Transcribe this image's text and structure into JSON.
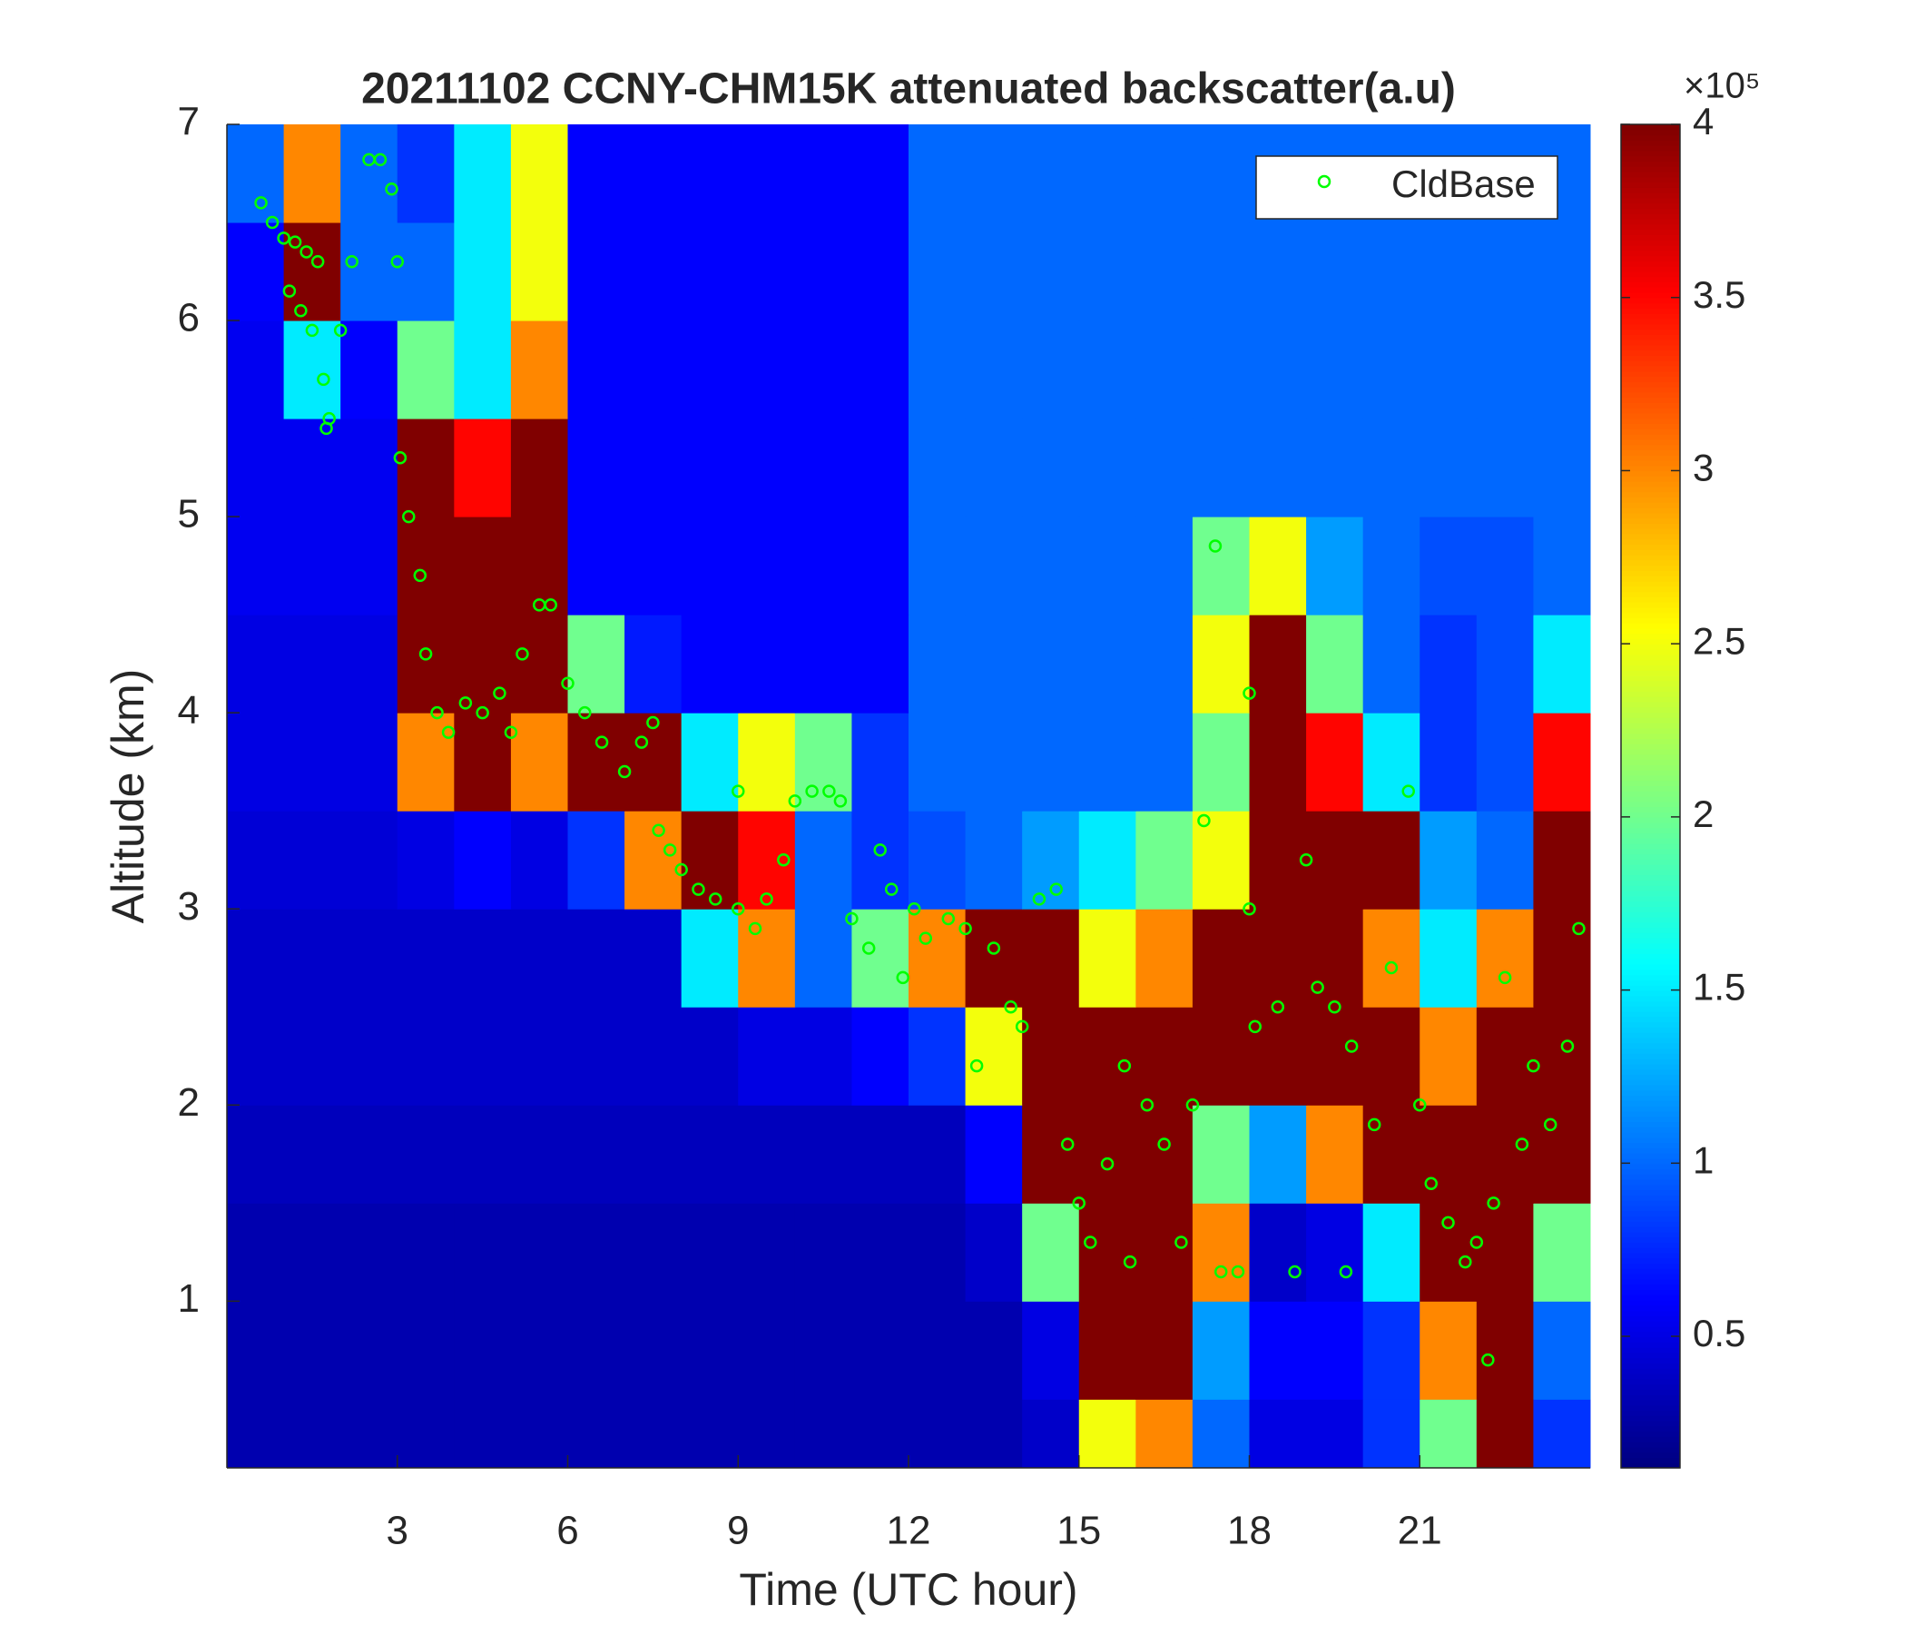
{
  "chart_data": {
    "type": "heatmap",
    "title": "20211102 CCNY-CHM15K attenuated backscatter(a.u)",
    "xlabel": "Time (UTC hour)",
    "ylabel": "Altitude (km)",
    "xlim": [
      0,
      24
    ],
    "ylim": [
      0.15,
      7
    ],
    "xticks": [
      3,
      6,
      9,
      12,
      15,
      18,
      21
    ],
    "yticks": [
      1,
      2,
      3,
      4,
      5,
      6,
      7
    ],
    "colormap": "jet",
    "clim": [
      0.12,
      4
    ],
    "colorbar_ticks": [
      0.5,
      1,
      1.5,
      2,
      2.5,
      3,
      3.5,
      4
    ],
    "colorbar_exponent_label": "×10⁵",
    "legend": "upper right",
    "x_edges": [
      0,
      1,
      2,
      3,
      4,
      5,
      6,
      7,
      8,
      9,
      10,
      11,
      12,
      13,
      14,
      15,
      16,
      17,
      18,
      19,
      20,
      21,
      22,
      23,
      24
    ],
    "y_edges": [
      0.15,
      0.5,
      1,
      1.5,
      2,
      2.5,
      3,
      3.5,
      4,
      4.5,
      5,
      5.5,
      6,
      6.5,
      7
    ],
    "z": [
      [
        0.3,
        0.3,
        0.3,
        0.3,
        0.3,
        0.3,
        0.3,
        0.3,
        0.3,
        0.3,
        0.3,
        0.3,
        0.3,
        0.3,
        0.4,
        2.5,
        3,
        1,
        0.5,
        0.5,
        0.8,
        2,
        4,
        0.8
      ],
      [
        0.3,
        0.3,
        0.3,
        0.3,
        0.3,
        0.3,
        0.3,
        0.3,
        0.3,
        0.3,
        0.3,
        0.3,
        0.3,
        0.3,
        0.5,
        4,
        4,
        1.2,
        0.6,
        0.6,
        0.8,
        3,
        4,
        1
      ],
      [
        0.3,
        0.3,
        0.3,
        0.3,
        0.3,
        0.3,
        0.3,
        0.3,
        0.3,
        0.3,
        0.3,
        0.3,
        0.3,
        0.4,
        2,
        4,
        4,
        3,
        0.4,
        0.5,
        1.5,
        4,
        4,
        2
      ],
      [
        0.35,
        0.35,
        0.35,
        0.35,
        0.35,
        0.35,
        0.35,
        0.35,
        0.35,
        0.35,
        0.35,
        0.35,
        0.35,
        0.6,
        4,
        4,
        4,
        2,
        1.2,
        3,
        4,
        4,
        4,
        4
      ],
      [
        0.4,
        0.4,
        0.4,
        0.4,
        0.4,
        0.4,
        0.4,
        0.4,
        0.4,
        0.5,
        0.5,
        0.6,
        0.8,
        2.5,
        4,
        4,
        4,
        4,
        4,
        4,
        4,
        3,
        4,
        4
      ],
      [
        0.4,
        0.4,
        0.4,
        0.4,
        0.4,
        0.4,
        0.4,
        0.4,
        1.5,
        3,
        1,
        2,
        3,
        4,
        4,
        2.5,
        3,
        4,
        4,
        4,
        3,
        1.5,
        3,
        4
      ],
      [
        0.45,
        0.45,
        0.45,
        0.5,
        0.6,
        0.5,
        0.8,
        3,
        4,
        3.5,
        1,
        0.8,
        0.9,
        1,
        1.2,
        1.5,
        2,
        2.5,
        4,
        4,
        4,
        1.2,
        1,
        4
      ],
      [
        0.5,
        0.5,
        0.5,
        3,
        4,
        3,
        4,
        4,
        1.5,
        2.5,
        2,
        0.8,
        1,
        1,
        1,
        1,
        1,
        2,
        4,
        3.5,
        1.5,
        0.8,
        0.9,
        3.5
      ],
      [
        0.5,
        0.5,
        0.5,
        4,
        4,
        4,
        2,
        0.7,
        0.6,
        0.6,
        0.6,
        0.6,
        1,
        1,
        1,
        1,
        1,
        2.5,
        4,
        2,
        1,
        0.8,
        0.9,
        1.5
      ],
      [
        0.55,
        0.55,
        0.55,
        4,
        4,
        4,
        0.6,
        0.6,
        0.6,
        0.6,
        0.6,
        0.6,
        1,
        1,
        1,
        1,
        1,
        2,
        2.5,
        1.2,
        1,
        0.9,
        0.9,
        1
      ],
      [
        0.55,
        0.55,
        0.55,
        4,
        3.5,
        4,
        0.6,
        0.6,
        0.6,
        0.6,
        0.6,
        0.6,
        1,
        1,
        1,
        1,
        1,
        1,
        1,
        1,
        1,
        1,
        1,
        1
      ],
      [
        0.55,
        1.5,
        0.6,
        2,
        1.5,
        3,
        0.6,
        0.6,
        0.6,
        0.6,
        0.6,
        0.6,
        1,
        1,
        1,
        1,
        1,
        1,
        1,
        1,
        1,
        1,
        1,
        1
      ],
      [
        0.6,
        4,
        1,
        1,
        1.5,
        2.5,
        0.6,
        0.6,
        0.6,
        0.6,
        0.6,
        0.6,
        1,
        1,
        1,
        1,
        1,
        1,
        1,
        1,
        1,
        1,
        1,
        1
      ],
      [
        1,
        3,
        1,
        0.8,
        1.5,
        2.5,
        0.6,
        0.6,
        0.6,
        0.6,
        0.6,
        0.6,
        1,
        1,
        1,
        1,
        1,
        1,
        1,
        1,
        1,
        1,
        1,
        1
      ]
    ],
    "series": [
      {
        "name": "CldBase",
        "type": "scatter",
        "color": "#00ff00",
        "x": [
          0.6,
          0.8,
          1.0,
          1.2,
          1.4,
          1.6,
          1.1,
          1.3,
          1.5,
          1.7,
          1.8,
          1.75,
          2.0,
          2.2,
          2.5,
          2.7,
          2.9,
          3.0,
          3.05,
          3.2,
          3.4,
          3.5,
          3.7,
          3.9,
          4.2,
          4.5,
          4.8,
          5.0,
          5.2,
          5.5,
          5.7,
          6.0,
          6.3,
          6.6,
          7.0,
          7.3,
          7.5,
          7.6,
          7.8,
          8.0,
          8.3,
          8.6,
          9.0,
          9.3,
          9.5,
          9.0,
          9.8,
          10.0,
          10.3,
          10.6,
          10.8,
          11.0,
          11.3,
          11.5,
          11.7,
          11.9,
          12.1,
          12.3,
          12.7,
          13.0,
          13.2,
          13.5,
          13.8,
          14.0,
          14.3,
          14.6,
          14.8,
          15.0,
          15.2,
          15.5,
          15.8,
          15.9,
          16.2,
          16.5,
          16.8,
          17.0,
          17.2,
          17.4,
          17.5,
          17.8,
          18.0,
          18.0,
          18.1,
          18.5,
          18.8,
          19.0,
          19.2,
          19.5,
          19.7,
          19.8,
          20.2,
          20.5,
          20.8,
          21.0,
          21.2,
          21.5,
          21.8,
          22.0,
          22.3,
          22.2,
          22.5,
          22.8,
          23.0,
          23.3,
          23.6,
          23.8
        ],
        "y": [
          6.6,
          6.5,
          6.42,
          6.4,
          6.35,
          6.3,
          6.15,
          6.05,
          5.95,
          5.7,
          5.5,
          5.45,
          5.95,
          6.3,
          6.82,
          6.82,
          6.67,
          6.3,
          5.3,
          5.0,
          4.7,
          4.3,
          4.0,
          3.9,
          4.05,
          4.0,
          4.1,
          3.9,
          4.3,
          4.55,
          4.55,
          4.15,
          4.0,
          3.85,
          3.7,
          3.85,
          3.95,
          3.4,
          3.3,
          3.2,
          3.1,
          3.05,
          3.0,
          2.9,
          3.05,
          3.6,
          3.25,
          3.55,
          3.6,
          3.6,
          3.55,
          2.95,
          2.8,
          3.3,
          3.1,
          2.65,
          3.0,
          2.85,
          2.95,
          2.9,
          2.2,
          2.8,
          2.5,
          2.4,
          3.05,
          3.1,
          1.8,
          1.5,
          1.3,
          1.7,
          2.2,
          1.2,
          2.0,
          1.8,
          1.3,
          2.0,
          3.45,
          4.85,
          1.15,
          1.15,
          4.1,
          3.0,
          2.4,
          2.5,
          1.15,
          3.25,
          2.6,
          2.5,
          1.15,
          2.3,
          1.9,
          2.7,
          3.6,
          2.0,
          1.6,
          1.4,
          1.2,
          1.3,
          1.5,
          0.7,
          2.65,
          1.8,
          2.2,
          1.9,
          2.3,
          2.9
        ]
      }
    ]
  }
}
